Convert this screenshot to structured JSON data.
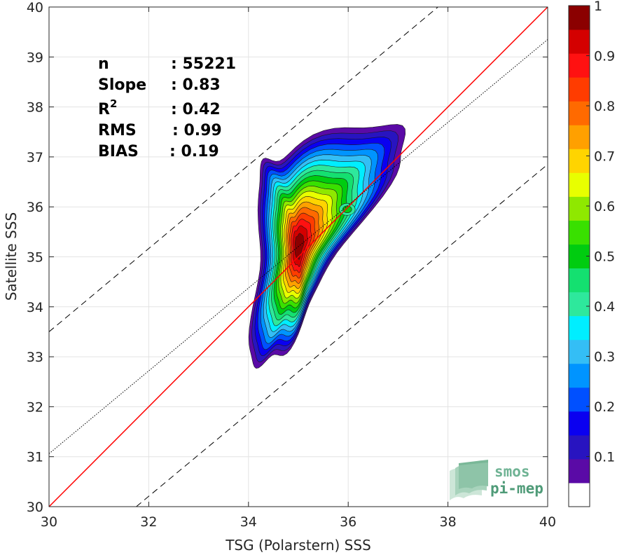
{
  "chart_data": {
    "type": "heatmap",
    "title": "",
    "xlabel": "TSG (Polarstern) SSS",
    "ylabel": "Satellite SSS",
    "xlim": [
      30,
      40
    ],
    "ylim": [
      30,
      40
    ],
    "xticks": [
      "30",
      "32",
      "34",
      "36",
      "38",
      "40"
    ],
    "yticks": [
      "30",
      "31",
      "32",
      "33",
      "34",
      "35",
      "36",
      "37",
      "38",
      "39",
      "40"
    ],
    "grid": true,
    "stats": [
      {
        "key": "n",
        "sep": " :",
        "value": "55221"
      },
      {
        "key": "Slope",
        "sep": " :",
        "value": "0.83"
      },
      {
        "key": "R",
        "sup": "2",
        "sep": " :",
        "value": "0.42"
      },
      {
        "key": "RMS",
        "sep": " :",
        "value": "0.99"
      },
      {
        "key": "BIAS",
        "sep": " :",
        "value": "0.19"
      }
    ],
    "lines": [
      {
        "style": "solid",
        "color": "#ff0000",
        "points": [
          [
            30,
            30
          ],
          [
            40,
            40
          ]
        ]
      },
      {
        "style": "dotted",
        "color": "#000000",
        "points": [
          [
            30,
            31.06
          ],
          [
            40,
            39.35
          ]
        ]
      },
      {
        "style": "dashed",
        "color": "#000000",
        "points": [
          [
            30,
            33.5
          ],
          [
            37.8,
            40
          ]
        ]
      },
      {
        "style": "dashed",
        "color": "#000000",
        "points": [
          [
            31.75,
            30
          ],
          [
            40,
            36.85
          ]
        ]
      }
    ],
    "density_peak": {
      "x": 35.0,
      "y": 35.2
    },
    "colorbar": {
      "range": [
        0,
        1
      ],
      "ticks": [
        "0.1",
        "0.2",
        "0.3",
        "0.4",
        "0.5",
        "0.6",
        "0.7",
        "0.8",
        "0.9",
        "1"
      ],
      "colors": [
        "#ffffff",
        "#5a0aa6",
        "#2814c0",
        "#0a00f0",
        "#0050ff",
        "#0094ff",
        "#34bef5",
        "#00eeff",
        "#2ee89c",
        "#14e070",
        "#00cc10",
        "#39e000",
        "#8fe800",
        "#e8ff00",
        "#ffd400",
        "#ffa000",
        "#ff6a00",
        "#ff3c00",
        "#ff1111",
        "#d40000",
        "#8b0000"
      ]
    }
  },
  "logo": {
    "line1": "smos",
    "line2": "pi-mep"
  }
}
